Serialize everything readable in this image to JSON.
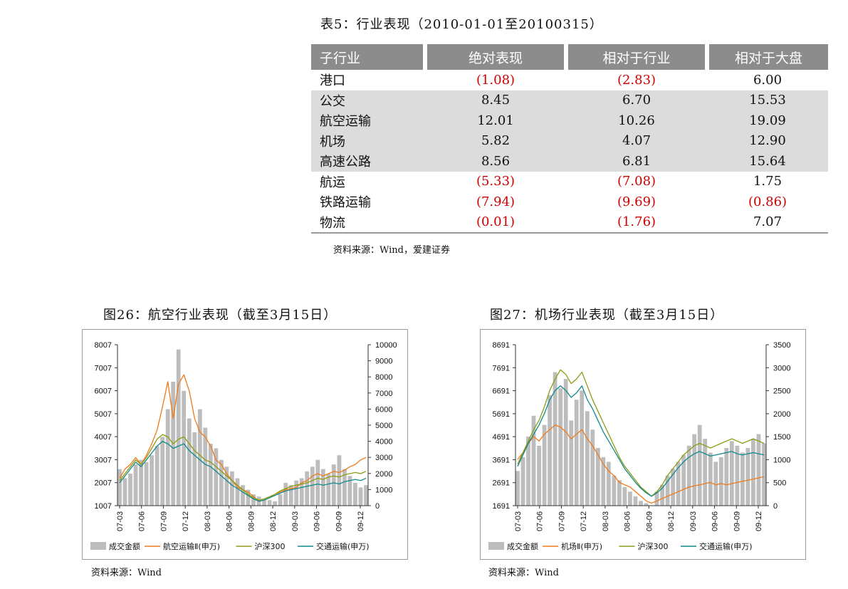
{
  "table5": {
    "title": "表5：行业表现（2010-01-01至20100315）",
    "headers": [
      "子行业",
      "绝对表现",
      "相对于行业",
      "相对于大盘"
    ],
    "rows": [
      {
        "name": "港口",
        "abs": "(1.08)",
        "rel_ind": "(2.83)",
        "rel_mkt": "6.00"
      },
      {
        "name": "公交",
        "abs": "8.45",
        "rel_ind": "6.70",
        "rel_mkt": "15.53"
      },
      {
        "name": "航空运输",
        "abs": "12.01",
        "rel_ind": "10.26",
        "rel_mkt": "19.09"
      },
      {
        "name": "机场",
        "abs": "5.82",
        "rel_ind": "4.07",
        "rel_mkt": "12.90"
      },
      {
        "name": "高速公路",
        "abs": "8.56",
        "rel_ind": "6.81",
        "rel_mkt": "15.64"
      },
      {
        "name": "航运",
        "abs": "(5.33)",
        "rel_ind": "(7.08)",
        "rel_mkt": "1.75"
      },
      {
        "name": "铁路运输",
        "abs": "(7.94)",
        "rel_ind": "(9.69)",
        "rel_mkt": "(0.86)"
      },
      {
        "name": "物流",
        "abs": "(0.01)",
        "rel_ind": "(1.76)",
        "rel_mkt": "7.07"
      }
    ],
    "source": "资料来源：Wind，爱建证券"
  },
  "colors": {
    "header_bg": "#8c8c8c",
    "shade": "#dcdcdc",
    "negative": "#d10000",
    "volume": "#bdbdbd",
    "sector": "#f07a1a",
    "hs300": "#8f9a13",
    "transport": "#0f8a8a"
  },
  "fig26": {
    "title": "图26：航空行业表现（截至3月15日）",
    "source": "资料来源：Wind"
  },
  "fig27": {
    "title": "图27：机场行业表现（截至3月15日）",
    "source": "资料来源：Wind"
  },
  "chart_data": [
    {
      "type": "line",
      "x_ticks": [
        "07-03",
        "07-06",
        "07-09",
        "07-12",
        "08-03",
        "08-06",
        "08-09",
        "08-12",
        "09-03",
        "09-06",
        "09-09",
        "09-12"
      ],
      "y_left_ticks": [
        "8007",
        "7007",
        "6007",
        "5007",
        "4007",
        "3007",
        "2007",
        "1007"
      ],
      "y_left_lim": [
        1007,
        8007
      ],
      "y_right_ticks": [
        "10000",
        "9000",
        "8000",
        "7000",
        "6000",
        "5000",
        "4000",
        "3000",
        "2000",
        "1000",
        "0"
      ],
      "y_right_lim": [
        0,
        10000
      ],
      "legend": [
        "成交金额",
        "航空运输Ⅱ(申万)",
        "沪深300",
        "交通运输(申万)"
      ],
      "volume": [
        2600,
        2200,
        2400,
        2800,
        3000,
        2900,
        3200,
        3600,
        4000,
        5200,
        6400,
        7800,
        6000,
        4800,
        4200,
        5200,
        4400,
        3700,
        3500,
        3000,
        2700,
        2500,
        2200,
        1900,
        1700,
        1500,
        1400,
        1300,
        1250,
        1200,
        1500,
        2000,
        1900,
        2100,
        2200,
        2500,
        2700,
        3000,
        2600,
        2400,
        2800,
        3200,
        2600,
        2300,
        2000,
        1800,
        1900
      ],
      "series": [
        {
          "name": "航空运输Ⅱ(申万)",
          "values": [
            2200,
            2600,
            2800,
            3100,
            2800,
            3200,
            3700,
            4300,
            5300,
            6400,
            4800,
            6300,
            6700,
            6000,
            4800,
            4200,
            4000,
            3600,
            3000,
            2800,
            2400,
            2100,
            1800,
            1700,
            1600,
            1400,
            1200,
            1250,
            1350,
            1500,
            1600,
            1700,
            1750,
            1800,
            2000,
            2100,
            2300,
            2400,
            2300,
            2400,
            2500,
            2450,
            2550,
            2700,
            2800,
            3000,
            3100
          ]
        },
        {
          "name": "沪深300",
          "values": [
            2100,
            2400,
            2700,
            3000,
            2800,
            3100,
            3500,
            3900,
            4100,
            4000,
            3700,
            3900,
            4000,
            3700,
            3400,
            3200,
            3000,
            2900,
            2700,
            2500,
            2300,
            2100,
            1900,
            1700,
            1500,
            1350,
            1250,
            1300,
            1400,
            1500,
            1650,
            1750,
            1850,
            1900,
            1950,
            2000,
            2100,
            2200,
            2150,
            2250,
            2300,
            2250,
            2350,
            2400,
            2450,
            2400,
            2500
          ]
        },
        {
          "name": "交通运输(申万)",
          "values": [
            2000,
            2300,
            2600,
            2900,
            2700,
            3000,
            3300,
            3600,
            3800,
            3700,
            3500,
            3600,
            3700,
            3400,
            3200,
            3000,
            2800,
            2700,
            2500,
            2300,
            2100,
            1900,
            1750,
            1600,
            1450,
            1300,
            1200,
            1250,
            1350,
            1450,
            1550,
            1650,
            1700,
            1750,
            1800,
            1850,
            1900,
            1950,
            1900,
            1950,
            2000,
            1950,
            2050,
            2100,
            2150,
            2100,
            2200
          ]
        }
      ]
    },
    {
      "type": "line",
      "x_ticks": [
        "07-03",
        "07-06",
        "07-09",
        "07-12",
        "08-03",
        "08-06",
        "08-09",
        "08-12",
        "09-03",
        "09-06",
        "09-09",
        "09-12"
      ],
      "y_left_ticks": [
        "8691",
        "7691",
        "6691",
        "5691",
        "4691",
        "3691",
        "2691",
        "1691"
      ],
      "y_left_lim": [
        1691,
        8691
      ],
      "y_right_ticks": [
        "3500",
        "3000",
        "2500",
        "2000",
        "1500",
        "1000",
        "500",
        "0"
      ],
      "y_right_lim": [
        0,
        3500
      ],
      "legend": [
        "成交金额",
        "机场Ⅱ(申万)",
        "沪深300",
        "交通运输(申万)"
      ],
      "volume": [
        3200,
        3800,
        4700,
        5600,
        4300,
        5200,
        6500,
        7500,
        6800,
        7200,
        5400,
        6300,
        6700,
        5800,
        5000,
        4200,
        3800,
        3600,
        3000,
        2800,
        2500,
        2300,
        2100,
        1900,
        1800,
        1700,
        2300,
        2600,
        3000,
        3300,
        3600,
        3900,
        4300,
        4800,
        5200,
        4600,
        4000,
        3600,
        3800,
        4200,
        4500,
        4300,
        4000,
        4200,
        4600,
        4800,
        4400
      ],
      "series": [
        {
          "name": "机场Ⅱ(申万)",
          "values": [
            3700,
            4000,
            4400,
            4700,
            4500,
            4800,
            5000,
            5200,
            5100,
            4900,
            4600,
            4800,
            5000,
            4600,
            4300,
            3900,
            3500,
            3200,
            3000,
            2700,
            2600,
            2500,
            2300,
            2100,
            1900,
            1800,
            1900,
            2000,
            2100,
            2200,
            2300,
            2400,
            2500,
            2550,
            2600,
            2650,
            2700,
            2600,
            2650,
            2600,
            2650,
            2700,
            2750,
            2800,
            2850,
            2900,
            2950
          ]
        },
        {
          "name": "沪深300",
          "values": [
            3500,
            4000,
            4500,
            5000,
            5400,
            6000,
            6700,
            7200,
            7600,
            7400,
            7000,
            7200,
            7500,
            6900,
            6300,
            5800,
            5300,
            4800,
            4300,
            3800,
            3400,
            3100,
            2800,
            2500,
            2300,
            2100,
            2300,
            2600,
            3000,
            3300,
            3600,
            3900,
            4100,
            4300,
            4400,
            4300,
            4200,
            4300,
            4400,
            4500,
            4600,
            4500,
            4400,
            4500,
            4600,
            4500,
            4400
          ]
        },
        {
          "name": "交通运输(申万)",
          "values": [
            3400,
            3900,
            4400,
            4800,
            5200,
            5700,
            6300,
            6700,
            6900,
            6700,
            6400,
            6600,
            6900,
            6300,
            5900,
            5400,
            4900,
            4500,
            4100,
            3700,
            3300,
            3000,
            2700,
            2450,
            2250,
            2100,
            2250,
            2450,
            2750,
            3050,
            3350,
            3600,
            3800,
            3950,
            4050,
            3950,
            3850,
            3900,
            3950,
            4000,
            4050,
            3950,
            3900,
            3950,
            4000,
            3950,
            3900
          ]
        }
      ]
    }
  ]
}
